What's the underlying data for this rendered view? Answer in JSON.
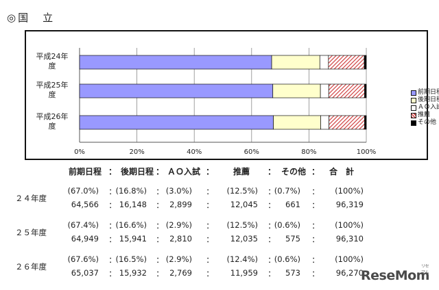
{
  "section_title": "◎国　立",
  "chart_data": {
    "type": "bar",
    "orientation": "horizontal",
    "stacked": true,
    "categories": [
      "平成24年度",
      "平成25年度",
      "平成26年度"
    ],
    "category_labels": [
      [
        "平成24年",
        "度"
      ],
      [
        "平成25年",
        "度"
      ],
      [
        "平成26年",
        "度"
      ]
    ],
    "xlim": [
      0,
      100
    ],
    "xticks": [
      "0%",
      "20%",
      "40%",
      "60%",
      "80%",
      "100%"
    ],
    "xtick_values": [
      0,
      20,
      40,
      60,
      80,
      100
    ],
    "grid": "vertical",
    "legend_position": "right",
    "series": [
      {
        "name": "前期日程",
        "values": [
          67.0,
          67.4,
          67.6
        ],
        "color": "#9999ff"
      },
      {
        "name": "後期日程",
        "values": [
          16.8,
          16.6,
          16.5
        ],
        "color": "#ffffcc"
      },
      {
        "name": "ＡＯ入試",
        "values": [
          3.0,
          2.9,
          2.9
        ],
        "color": "#ffffff"
      },
      {
        "name": "推薦",
        "values": [
          12.5,
          12.5,
          12.4
        ],
        "color": "#cc3333",
        "pattern": "hatch"
      },
      {
        "name": "その他",
        "values": [
          0.7,
          0.6,
          0.6
        ],
        "color": "#000000"
      }
    ]
  },
  "table": {
    "headers": [
      "前期日程",
      "：",
      "後期日程",
      "：",
      "ＡＯ入試",
      "：",
      "推薦",
      "：",
      "その他",
      "：",
      "合　計"
    ],
    "rows": [
      {
        "label": "２４年度",
        "percents": [
          "(67.0%)",
          "：",
          "(16.8%)",
          "：",
          "(3.0%)",
          "：",
          "(12.5%)",
          "：",
          "(0.7%)",
          "：",
          "(100%)"
        ],
        "counts": [
          "64,566",
          "：",
          "16,148",
          "：",
          "2,899",
          "：",
          "12,045",
          "：",
          "661",
          "：",
          "96,319"
        ]
      },
      {
        "label": "２５年度",
        "percents": [
          "(67.4%)",
          "：",
          "(16.6%)",
          "：",
          "(2.9%)",
          "：",
          "(12.5%)",
          "：",
          "(0.6%)",
          "：",
          "(100%)"
        ],
        "counts": [
          "64,949",
          "：",
          "15,941",
          "：",
          "2,810",
          "：",
          "12,035",
          "：",
          "575",
          "：",
          "96,310"
        ]
      },
      {
        "label": "２６年度",
        "percents": [
          "(67.6%)",
          "：",
          "(16.5%)",
          "：",
          "(2.9%)",
          "：",
          "(12.4%)",
          "：",
          "(0.6%)",
          "：",
          "(100%)"
        ],
        "counts": [
          "65,037",
          "：",
          "15,932",
          "：",
          "2,769",
          "：",
          "11,959",
          "：",
          "573",
          "：",
          "96,270"
        ]
      }
    ]
  },
  "watermark": "ReseMom",
  "watermark_sub": "リセマム"
}
